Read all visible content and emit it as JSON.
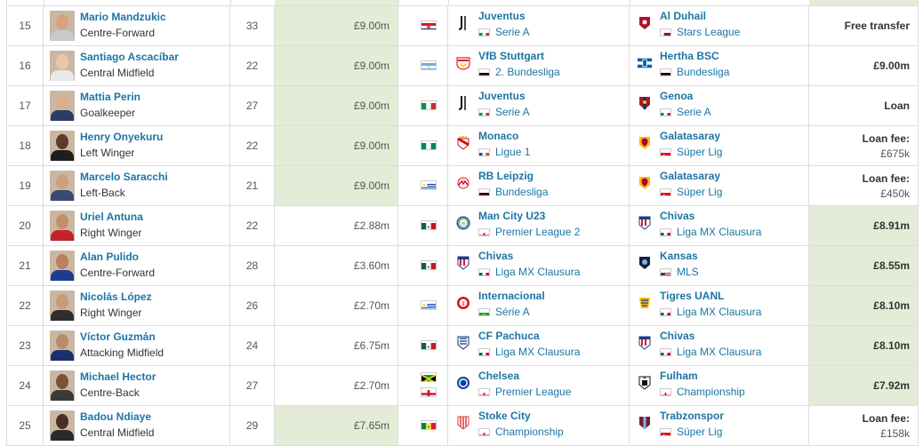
{
  "rows": [
    {
      "num": "15",
      "name": "Mario Mandzukic",
      "pos": "Centre-Forward",
      "age": "33",
      "mv": "£9.00m",
      "nat": [
        "CRO"
      ],
      "from": {
        "club": "Juventus",
        "league": "Serie A",
        "lflag": "ITA",
        "crest": "juventus-crest"
      },
      "to": {
        "club": "Al Duhail",
        "league": "Stars League",
        "lflag": "QAT",
        "crest": "al-duhail-crest"
      },
      "fee": [
        "Free transfer"
      ],
      "mvGreen": true,
      "feeGreen": false
    },
    {
      "num": "16",
      "name": "Santiago Ascacíbar",
      "pos": "Central Midfield",
      "age": "22",
      "mv": "£9.00m",
      "nat": [
        "ARG"
      ],
      "from": {
        "club": "VfB Stuttgart",
        "league": "2. Bundesliga",
        "lflag": "GER",
        "crest": "stuttgart-crest"
      },
      "to": {
        "club": "Hertha BSC",
        "league": "Bundesliga",
        "lflag": "GER",
        "crest": "hertha-crest"
      },
      "fee": [
        "£9.00m"
      ],
      "mvGreen": true,
      "feeGreen": false
    },
    {
      "num": "17",
      "name": "Mattia Perin",
      "pos": "Goalkeeper",
      "age": "27",
      "mv": "£9.00m",
      "nat": [
        "ITA"
      ],
      "from": {
        "club": "Juventus",
        "league": "Serie A",
        "lflag": "ITA",
        "crest": "juventus-crest"
      },
      "to": {
        "club": "Genoa",
        "league": "Serie A",
        "lflag": "ITA",
        "crest": "genoa-crest"
      },
      "fee": [
        "Loan"
      ],
      "mvGreen": true,
      "feeGreen": false
    },
    {
      "num": "18",
      "name": "Henry Onyekuru",
      "pos": "Left Winger",
      "age": "22",
      "mv": "£9.00m",
      "nat": [
        "NGA"
      ],
      "from": {
        "club": "Monaco",
        "league": "Ligue 1",
        "lflag": "FRA",
        "crest": "monaco-crest"
      },
      "to": {
        "club": "Galatasaray",
        "league": "Süper Lig",
        "lflag": "TUR",
        "crest": "galatasaray-crest"
      },
      "fee": [
        "Loan fee:",
        "£675k"
      ],
      "mvGreen": true,
      "feeGreen": false
    },
    {
      "num": "19",
      "name": "Marcelo Saracchi",
      "pos": "Left-Back",
      "age": "21",
      "mv": "£9.00m",
      "nat": [
        "URU"
      ],
      "from": {
        "club": "RB Leipzig",
        "league": "Bundesliga",
        "lflag": "GER",
        "crest": "leipzig-crest"
      },
      "to": {
        "club": "Galatasaray",
        "league": "Süper Lig",
        "lflag": "TUR",
        "crest": "galatasaray-crest"
      },
      "fee": [
        "Loan fee:",
        "£450k"
      ],
      "mvGreen": true,
      "feeGreen": false
    },
    {
      "num": "20",
      "name": "Uriel Antuna",
      "pos": "Right Winger",
      "age": "22",
      "mv": "£2.88m",
      "nat": [
        "MEX"
      ],
      "from": {
        "club": "Man City U23",
        "league": "Premier League 2",
        "lflag": "ENG",
        "crest": "man-city-crest"
      },
      "to": {
        "club": "Chivas",
        "league": "Liga MX Clausura",
        "lflag": "MEX",
        "crest": "chivas-crest"
      },
      "fee": [
        "£8.91m"
      ],
      "mvGreen": false,
      "feeGreen": true
    },
    {
      "num": "21",
      "name": "Alan Pulido",
      "pos": "Centre-Forward",
      "age": "28",
      "mv": "£3.60m",
      "nat": [
        "MEX"
      ],
      "from": {
        "club": "Chivas",
        "league": "Liga MX Clausura",
        "lflag": "MEX",
        "crest": "chivas-crest"
      },
      "to": {
        "club": "Kansas",
        "league": "MLS",
        "lflag": "USA",
        "crest": "kansas-crest"
      },
      "fee": [
        "£8.55m"
      ],
      "mvGreen": false,
      "feeGreen": true
    },
    {
      "num": "22",
      "name": "Nicolás López",
      "pos": "Right Winger",
      "age": "26",
      "mv": "£2.70m",
      "nat": [
        "URU"
      ],
      "from": {
        "club": "Internacional",
        "league": "Série A",
        "lflag": "BRA",
        "crest": "internacional-crest"
      },
      "to": {
        "club": "Tigres UANL",
        "league": "Liga MX Clausura",
        "lflag": "MEX",
        "crest": "tigres-crest"
      },
      "fee": [
        "£8.10m"
      ],
      "mvGreen": false,
      "feeGreen": true
    },
    {
      "num": "23",
      "name": "Víctor Guzmán",
      "pos": "Attacking Midfield",
      "age": "24",
      "mv": "£6.75m",
      "nat": [
        "MEX"
      ],
      "from": {
        "club": "CF Pachuca",
        "league": "Liga MX Clausura",
        "lflag": "MEX",
        "crest": "pachuca-crest"
      },
      "to": {
        "club": "Chivas",
        "league": "Liga MX Clausura",
        "lflag": "MEX",
        "crest": "chivas-crest"
      },
      "fee": [
        "£8.10m"
      ],
      "mvGreen": false,
      "feeGreen": true
    },
    {
      "num": "24",
      "name": "Michael Hector",
      "pos": "Centre-Back",
      "age": "27",
      "mv": "£2.70m",
      "nat": [
        "JAM",
        "ENG"
      ],
      "from": {
        "club": "Chelsea",
        "league": "Premier League",
        "lflag": "ENG",
        "crest": "chelsea-crest"
      },
      "to": {
        "club": "Fulham",
        "league": "Championship",
        "lflag": "ENG",
        "crest": "fulham-crest"
      },
      "fee": [
        "£7.92m"
      ],
      "mvGreen": false,
      "feeGreen": true
    },
    {
      "num": "25",
      "name": "Badou Ndiaye",
      "pos": "Central Midfield",
      "age": "29",
      "mv": "£7.65m",
      "nat": [
        "SEN"
      ],
      "from": {
        "club": "Stoke City",
        "league": "Championship",
        "lflag": "ENG",
        "crest": "stoke-crest"
      },
      "to": {
        "club": "Trabzonspor",
        "league": "Süper Lig",
        "lflag": "TUR",
        "crest": "trabzonspor-crest"
      },
      "fee": [
        "Loan fee:",
        "£158k"
      ],
      "mvGreen": true,
      "feeGreen": false
    }
  ],
  "colors": {
    "link": "#1d75a3",
    "highlight": "#e4ecd8",
    "border": "#dddddd"
  }
}
